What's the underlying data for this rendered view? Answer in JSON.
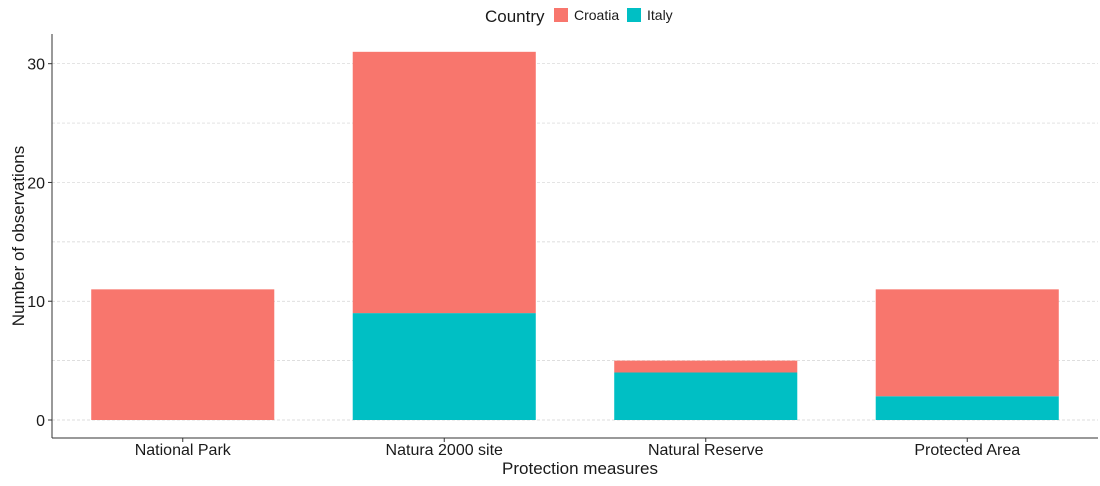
{
  "chart_data": {
    "type": "bar",
    "stacked": true,
    "categories": [
      "National Park",
      "Natura 2000 site",
      "Natural Reserve",
      "Protected Area"
    ],
    "series": [
      {
        "name": "Italy",
        "values": [
          0,
          9,
          4,
          2
        ],
        "color": "#00BFC4"
      },
      {
        "name": "Croatia",
        "values": [
          11,
          22,
          1,
          9
        ],
        "color": "#F8766D"
      }
    ],
    "legend": {
      "title": "Country",
      "entries": [
        "Croatia",
        "Italy"
      ],
      "position": "top"
    },
    "xlabel": "Protection measures",
    "ylabel": "Number of observations",
    "ylim": [
      0,
      32.5
    ],
    "yticks": [
      0,
      10,
      20,
      30
    ],
    "grid": true
  }
}
